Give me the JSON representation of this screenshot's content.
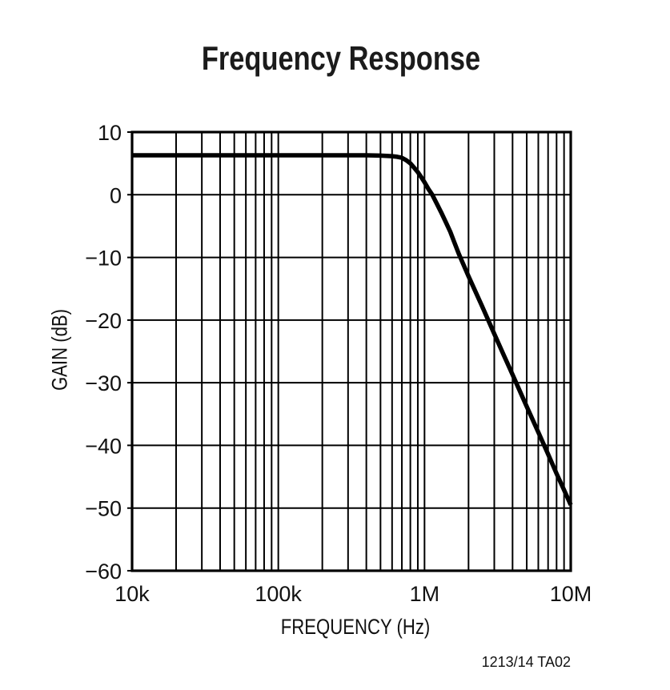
{
  "chart_data": {
    "type": "line",
    "title": "Frequency Response",
    "xlabel": "FREQUENCY (Hz)",
    "ylabel": "GAIN (dB)",
    "footnote": "1213/14 TA02",
    "x_scale": "log",
    "xlim": [
      10000,
      10000000
    ],
    "ylim": [
      -60,
      10
    ],
    "x_ticks": [
      {
        "value": 10000,
        "label": "10k"
      },
      {
        "value": 100000,
        "label": "100k"
      },
      {
        "value": 1000000,
        "label": "1M"
      },
      {
        "value": 10000000,
        "label": "10M"
      }
    ],
    "y_ticks": [
      {
        "value": 10,
        "label": "10"
      },
      {
        "value": 0,
        "label": "0"
      },
      {
        "value": -10,
        "label": "−10"
      },
      {
        "value": -20,
        "label": "−20"
      },
      {
        "value": -30,
        "label": "−30"
      },
      {
        "value": -40,
        "label": "−40"
      },
      {
        "value": -50,
        "label": "−50"
      },
      {
        "value": -60,
        "label": "−60"
      }
    ],
    "grid": {
      "vertical": "log decades with minor lines 2-9",
      "horizontal": "every 10 dB",
      "line_color": "#000000"
    },
    "legend": "none",
    "series": [
      {
        "name": "Gain",
        "color": "#000000",
        "points": [
          [
            10000,
            6.3
          ],
          [
            20000,
            6.3
          ],
          [
            40000,
            6.3
          ],
          [
            70000,
            6.3
          ],
          [
            100000,
            6.3
          ],
          [
            150000,
            6.3
          ],
          [
            200000,
            6.3
          ],
          [
            300000,
            6.3
          ],
          [
            400000,
            6.3
          ],
          [
            500000,
            6.25
          ],
          [
            600000,
            6.15
          ],
          [
            650000,
            6.05
          ],
          [
            700000,
            5.9
          ],
          [
            750000,
            5.5
          ],
          [
            800000,
            5.0
          ],
          [
            850000,
            4.3
          ],
          [
            900000,
            3.6
          ],
          [
            950000,
            2.8
          ],
          [
            1000000,
            2.0
          ],
          [
            1060000,
            0.95
          ],
          [
            1130000,
            0.0
          ],
          [
            1200000,
            -1.2
          ],
          [
            1300000,
            -2.8
          ],
          [
            1400000,
            -4.4
          ],
          [
            1500000,
            -5.9
          ],
          [
            1600000,
            -7.6
          ],
          [
            1720000,
            -9.5
          ],
          [
            2000000,
            -13.0
          ],
          [
            2500000,
            -18.0
          ],
          [
            3000000,
            -22.2
          ],
          [
            3500000,
            -25.7
          ],
          [
            4000000,
            -28.7
          ],
          [
            5000000,
            -33.8
          ],
          [
            6000000,
            -37.9
          ],
          [
            7000000,
            -41.4
          ],
          [
            8000000,
            -44.5
          ],
          [
            9000000,
            -47.1
          ],
          [
            10000000,
            -49.5
          ]
        ]
      }
    ],
    "flat_band_gain_db": 6.3,
    "zero_db_crossing_hz": 1130000,
    "rolloff_db_per_decade": -52,
    "gain_at_10mhz_db": -49.5
  }
}
